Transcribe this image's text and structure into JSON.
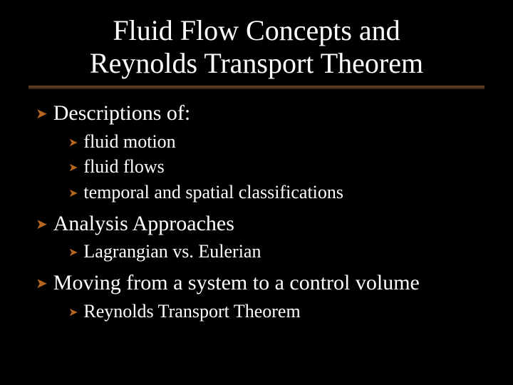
{
  "colors": {
    "background": "#000000",
    "text": "#ffffff",
    "bullet_arrow": "#b5651d",
    "underline_top": "#5b3a1f",
    "underline_bottom": "#3a2512"
  },
  "typography": {
    "family": "Times New Roman",
    "title_fontsize_pt": 40,
    "level1_fontsize_pt": 30,
    "level2_fontsize_pt": 26
  },
  "slide": {
    "title_line1": "Fluid Flow Concepts and",
    "title_line2": "Reynolds Transport Theorem",
    "sections": [
      {
        "label": "Descriptions of:",
        "items": [
          {
            "label": "fluid motion"
          },
          {
            "label": "fluid flows"
          },
          {
            "label": "temporal and spatial classifications"
          }
        ]
      },
      {
        "label": "Analysis Approaches",
        "items": [
          {
            "label": "Lagrangian vs. Eulerian"
          }
        ]
      },
      {
        "label": "Moving from a system to a control volume",
        "items": [
          {
            "label": "Reynolds Transport Theorem"
          }
        ]
      }
    ],
    "bullet_glyph": "➤"
  }
}
